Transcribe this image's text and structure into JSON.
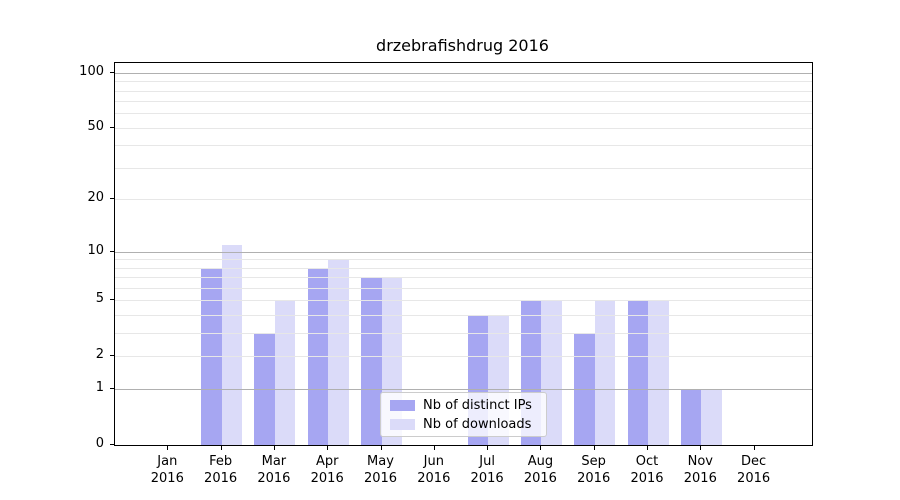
{
  "figure": {
    "title": "drzebrafishdrug 2016"
  },
  "chart_data": {
    "type": "bar",
    "title": "drzebrafishdrug 2016",
    "categories": [
      "Jan",
      "Feb",
      "Mar",
      "Apr",
      "May",
      "Jun",
      "Jul",
      "Aug",
      "Sep",
      "Oct",
      "Nov",
      "Dec"
    ],
    "year_label": "2016",
    "series": [
      {
        "name": "Nb of distinct IPs",
        "color": "#a6a6f2",
        "values": [
          0,
          8,
          3,
          8,
          7,
          0,
          4,
          5,
          3,
          5,
          1,
          0
        ]
      },
      {
        "name": "Nb of downloads",
        "color": "#dbdbf9",
        "values": [
          0,
          11,
          5,
          9,
          7,
          0,
          4,
          5,
          5,
          5,
          1,
          0
        ]
      }
    ],
    "xlabel": "",
    "ylabel": "",
    "y_axis": {
      "scale": "log1p",
      "tick_values": [
        0,
        1,
        2,
        5,
        10,
        20,
        50,
        100
      ],
      "top_value": 113,
      "major_gridline_values": [
        1,
        10,
        100
      ],
      "minor_gridline_values": [
        2,
        3,
        4,
        5,
        6,
        7,
        8,
        9,
        20,
        30,
        40,
        50,
        60,
        70,
        80,
        90
      ]
    },
    "legend_position": "lower center",
    "grid": "on",
    "colors": {
      "major_grid": "#b0b0b0",
      "minor_grid": "#e7e7e7",
      "spine": "#000000",
      "text": "#000000",
      "background": "#ffffff"
    }
  }
}
